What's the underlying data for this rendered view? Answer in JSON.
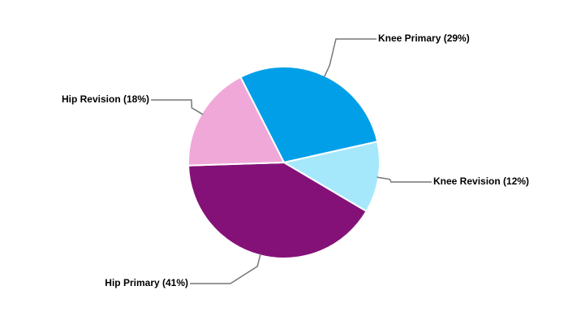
{
  "chart_data": {
    "type": "pie",
    "categories": [
      "Knee Primary (29%)",
      "Knee Revision (12%)",
      "Hip Primary (41%)",
      "Hip Revision (18%)"
    ],
    "values": [
      29,
      12,
      41,
      18
    ],
    "colors": [
      "#009fe8",
      "#a6e8fb",
      "#841178",
      "#f0a8d8"
    ]
  }
}
